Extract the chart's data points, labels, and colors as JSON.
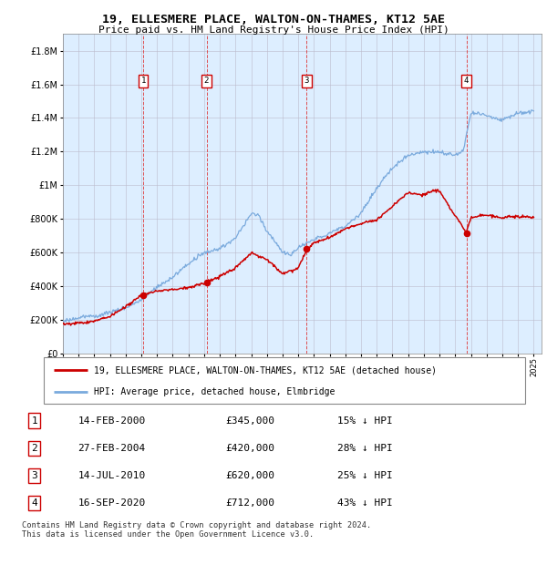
{
  "title": "19, ELLESMERE PLACE, WALTON-ON-THAMES, KT12 5AE",
  "subtitle": "Price paid vs. HM Land Registry's House Price Index (HPI)",
  "ytick_values": [
    0,
    200000,
    400000,
    600000,
    800000,
    1000000,
    1200000,
    1400000,
    1600000,
    1800000
  ],
  "ytick_labels": [
    "£0",
    "£200K",
    "£400K",
    "£600K",
    "£800K",
    "£1M",
    "£1.2M",
    "£1.4M",
    "£1.6M",
    "£1.8M"
  ],
  "ylim": [
    0,
    1900000
  ],
  "xlim_start": 1995.0,
  "xlim_end": 2025.5,
  "sale_points": [
    {
      "num": 1,
      "date_label": "14-FEB-2000",
      "year_x": 2000.12,
      "price": 345000,
      "pct": "15%"
    },
    {
      "num": 2,
      "date_label": "27-FEB-2004",
      "year_x": 2004.15,
      "price": 420000,
      "pct": "28%"
    },
    {
      "num": 3,
      "date_label": "14-JUL-2010",
      "year_x": 2010.54,
      "price": 620000,
      "pct": "25%"
    },
    {
      "num": 4,
      "date_label": "16-SEP-2020",
      "year_x": 2020.71,
      "price": 712000,
      "pct": "43%"
    }
  ],
  "sale_labels": [
    "£345,000",
    "£420,000",
    "£620,000",
    "£712,000"
  ],
  "line_color_red": "#cc0000",
  "line_color_blue": "#7aaadd",
  "dashed_color": "#dd3333",
  "box_color": "#cc0000",
  "bg_color": "#ddeeff",
  "grid_color": "#bbbbcc",
  "legend_label_red": "19, ELLESMERE PLACE, WALTON-ON-THAMES, KT12 5AE (detached house)",
  "legend_label_blue": "HPI: Average price, detached house, Elmbridge",
  "footer": "Contains HM Land Registry data © Crown copyright and database right 2024.\nThis data is licensed under the Open Government Licence v3.0.",
  "xtick_years": [
    1995,
    1996,
    1997,
    1998,
    1999,
    2000,
    2001,
    2002,
    2003,
    2004,
    2005,
    2006,
    2007,
    2008,
    2009,
    2010,
    2011,
    2012,
    2013,
    2014,
    2015,
    2016,
    2017,
    2018,
    2019,
    2020,
    2021,
    2022,
    2023,
    2024,
    2025
  ],
  "table_data": [
    [
      "1",
      "14-FEB-2000",
      "£345,000",
      "15% ↓ HPI"
    ],
    [
      "2",
      "27-FEB-2004",
      "£420,000",
      "28% ↓ HPI"
    ],
    [
      "3",
      "14-JUL-2010",
      "£620,000",
      "25% ↓ HPI"
    ],
    [
      "4",
      "16-SEP-2020",
      "£712,000",
      "43% ↓ HPI"
    ]
  ]
}
